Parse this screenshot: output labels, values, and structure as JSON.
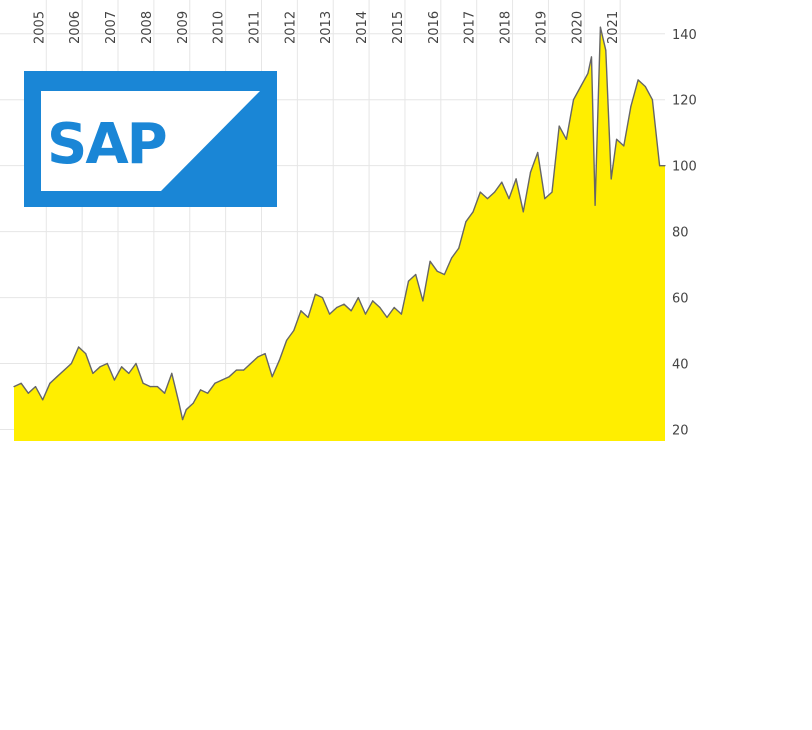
{
  "colors": {
    "fill": "#ffee00",
    "line": "#666666",
    "grid": "#e6e6e6",
    "axis_text": "#444444",
    "logo_blue": "#1a86d6",
    "logo_white": "#ffffff"
  },
  "logo": {
    "text": "SAP",
    "icon": "sap-logo"
  },
  "chart_data": {
    "type": "area",
    "title": "",
    "xlabel": "",
    "ylabel": "",
    "x_ticks": [
      "2005",
      "2006",
      "2007",
      "2008",
      "2009",
      "2010",
      "2011",
      "2012",
      "2013",
      "2014",
      "2015",
      "2016",
      "2017",
      "2018",
      "2019",
      "2020",
      "2021"
    ],
    "y_ticks": [
      20,
      40,
      60,
      80,
      100,
      120,
      140
    ],
    "xlim": [
      2004.1,
      2022.25
    ],
    "ylim": [
      16.5,
      146
    ],
    "grid": true,
    "y_axis_side": "right",
    "x_axis_side": "top",
    "x": [
      2004.1,
      2004.3,
      2004.5,
      2004.7,
      2004.9,
      2005.1,
      2005.3,
      2005.5,
      2005.7,
      2005.9,
      2006.1,
      2006.3,
      2006.5,
      2006.7,
      2006.9,
      2007.1,
      2007.3,
      2007.5,
      2007.7,
      2007.9,
      2008.1,
      2008.3,
      2008.5,
      2008.7,
      2008.8,
      2008.9,
      2009.1,
      2009.3,
      2009.5,
      2009.7,
      2009.9,
      2010.1,
      2010.3,
      2010.5,
      2010.7,
      2010.9,
      2011.1,
      2011.3,
      2011.5,
      2011.7,
      2011.9,
      2012.1,
      2012.3,
      2012.5,
      2012.7,
      2012.9,
      2013.1,
      2013.3,
      2013.5,
      2013.7,
      2013.9,
      2014.1,
      2014.3,
      2014.5,
      2014.7,
      2014.9,
      2015.1,
      2015.3,
      2015.5,
      2015.7,
      2015.9,
      2016.1,
      2016.3,
      2016.5,
      2016.7,
      2016.9,
      2017.1,
      2017.3,
      2017.5,
      2017.7,
      2017.9,
      2018.1,
      2018.3,
      2018.5,
      2018.7,
      2018.9,
      2019.1,
      2019.3,
      2019.5,
      2019.7,
      2019.9,
      2020.1,
      2020.2,
      2020.3,
      2020.45,
      2020.6,
      2020.75,
      2020.9,
      2021.1,
      2021.3,
      2021.5,
      2021.7,
      2021.9,
      2022.1,
      2022.25
    ],
    "y": [
      33,
      34,
      31,
      33,
      29,
      34,
      36,
      38,
      40,
      45,
      43,
      37,
      39,
      40,
      35,
      39,
      37,
      40,
      34,
      33,
      33,
      31,
      37,
      28,
      23,
      26,
      28,
      32,
      31,
      34,
      35,
      36,
      38,
      38,
      40,
      42,
      43,
      36,
      41,
      47,
      50,
      56,
      54,
      61,
      60,
      55,
      57,
      58,
      56,
      60,
      55,
      59,
      57,
      54,
      57,
      55,
      65,
      67,
      59,
      71,
      68,
      67,
      72,
      75,
      83,
      86,
      92,
      90,
      92,
      95,
      90,
      96,
      86,
      98,
      104,
      90,
      92,
      112,
      108,
      120,
      124,
      128,
      133,
      88,
      142,
      135,
      96,
      108,
      106,
      118,
      126,
      124,
      120,
      100,
      100
    ]
  }
}
